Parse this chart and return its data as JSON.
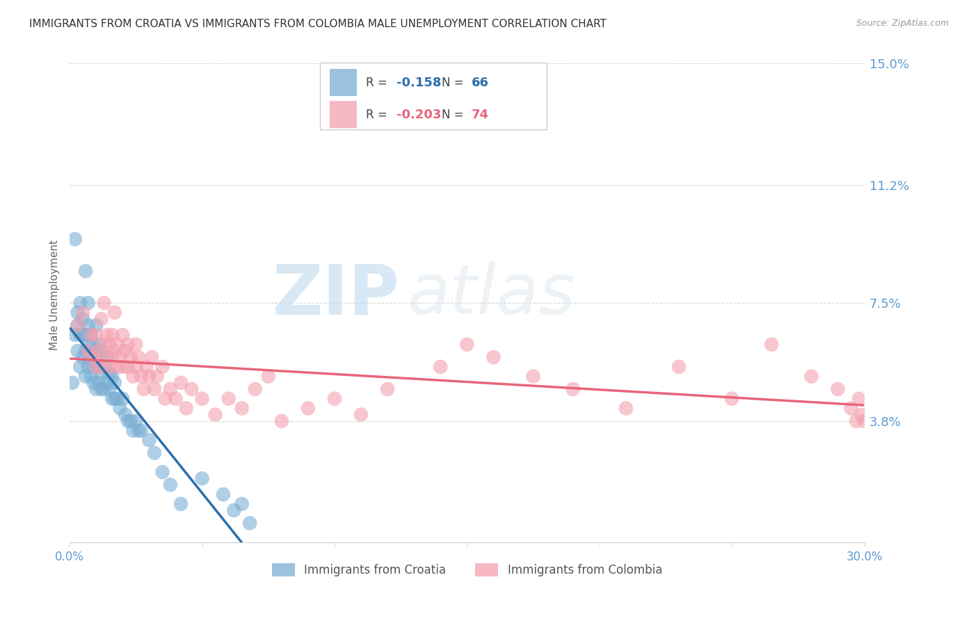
{
  "title": "IMMIGRANTS FROM CROATIA VS IMMIGRANTS FROM COLOMBIA MALE UNEMPLOYMENT CORRELATION CHART",
  "source": "Source: ZipAtlas.com",
  "ylabel": "Male Unemployment",
  "xlim": [
    0.0,
    0.3
  ],
  "ylim": [
    0.0,
    0.155
  ],
  "yticks": [
    0.038,
    0.075,
    0.112,
    0.15
  ],
  "ytick_labels": [
    "3.8%",
    "7.5%",
    "11.2%",
    "15.0%"
  ],
  "croatia_color": "#7bafd4",
  "colombia_color": "#f4a0b0",
  "croatia_line_color": "#2c6fad",
  "colombia_line_color": "#e8657a",
  "croatia_R": -0.158,
  "croatia_N": 66,
  "colombia_R": -0.203,
  "colombia_N": 74,
  "croatia_scatter_x": [
    0.001,
    0.002,
    0.002,
    0.003,
    0.003,
    0.003,
    0.004,
    0.004,
    0.004,
    0.005,
    0.005,
    0.005,
    0.006,
    0.006,
    0.006,
    0.006,
    0.007,
    0.007,
    0.007,
    0.007,
    0.008,
    0.008,
    0.008,
    0.009,
    0.009,
    0.009,
    0.01,
    0.01,
    0.01,
    0.01,
    0.011,
    0.011,
    0.011,
    0.012,
    0.012,
    0.012,
    0.013,
    0.013,
    0.014,
    0.014,
    0.015,
    0.015,
    0.016,
    0.016,
    0.017,
    0.017,
    0.018,
    0.019,
    0.02,
    0.021,
    0.022,
    0.023,
    0.024,
    0.025,
    0.026,
    0.027,
    0.03,
    0.032,
    0.035,
    0.038,
    0.042,
    0.05,
    0.058,
    0.062,
    0.065,
    0.068
  ],
  "croatia_scatter_y": [
    0.05,
    0.095,
    0.065,
    0.06,
    0.068,
    0.072,
    0.055,
    0.065,
    0.075,
    0.058,
    0.065,
    0.07,
    0.052,
    0.06,
    0.065,
    0.085,
    0.055,
    0.062,
    0.068,
    0.075,
    0.052,
    0.058,
    0.065,
    0.05,
    0.055,
    0.062,
    0.048,
    0.055,
    0.06,
    0.068,
    0.05,
    0.055,
    0.062,
    0.048,
    0.053,
    0.06,
    0.048,
    0.055,
    0.05,
    0.058,
    0.048,
    0.053,
    0.045,
    0.052,
    0.045,
    0.05,
    0.045,
    0.042,
    0.045,
    0.04,
    0.038,
    0.038,
    0.035,
    0.038,
    0.035,
    0.035,
    0.032,
    0.028,
    0.022,
    0.018,
    0.012,
    0.02,
    0.015,
    0.01,
    0.012,
    0.006
  ],
  "colombia_scatter_x": [
    0.003,
    0.005,
    0.007,
    0.008,
    0.009,
    0.01,
    0.01,
    0.011,
    0.012,
    0.012,
    0.013,
    0.013,
    0.014,
    0.014,
    0.015,
    0.015,
    0.016,
    0.016,
    0.017,
    0.017,
    0.018,
    0.018,
    0.019,
    0.02,
    0.02,
    0.021,
    0.022,
    0.022,
    0.023,
    0.024,
    0.025,
    0.025,
    0.026,
    0.027,
    0.028,
    0.029,
    0.03,
    0.031,
    0.032,
    0.033,
    0.035,
    0.036,
    0.038,
    0.04,
    0.042,
    0.044,
    0.046,
    0.05,
    0.055,
    0.06,
    0.065,
    0.07,
    0.075,
    0.08,
    0.09,
    0.1,
    0.11,
    0.12,
    0.14,
    0.15,
    0.16,
    0.175,
    0.19,
    0.21,
    0.23,
    0.25,
    0.265,
    0.28,
    0.29,
    0.295,
    0.297,
    0.298,
    0.299,
    0.3
  ],
  "colombia_scatter_y": [
    0.068,
    0.072,
    0.06,
    0.065,
    0.058,
    0.055,
    0.065,
    0.06,
    0.07,
    0.055,
    0.062,
    0.075,
    0.058,
    0.065,
    0.055,
    0.062,
    0.058,
    0.065,
    0.072,
    0.06,
    0.055,
    0.062,
    0.058,
    0.055,
    0.065,
    0.06,
    0.055,
    0.062,
    0.058,
    0.052,
    0.055,
    0.062,
    0.058,
    0.052,
    0.048,
    0.055,
    0.052,
    0.058,
    0.048,
    0.052,
    0.055,
    0.045,
    0.048,
    0.045,
    0.05,
    0.042,
    0.048,
    0.045,
    0.04,
    0.045,
    0.042,
    0.048,
    0.052,
    0.038,
    0.042,
    0.045,
    0.04,
    0.048,
    0.055,
    0.062,
    0.058,
    0.052,
    0.048,
    0.042,
    0.055,
    0.045,
    0.062,
    0.052,
    0.048,
    0.042,
    0.038,
    0.045,
    0.04,
    0.038
  ],
  "watermark_zip": "ZIP",
  "watermark_atlas": "atlas",
  "background_color": "#ffffff",
  "grid_color": "#cccccc",
  "tick_color": "#5b9bd5",
  "title_fontsize": 11,
  "axis_label_fontsize": 11
}
